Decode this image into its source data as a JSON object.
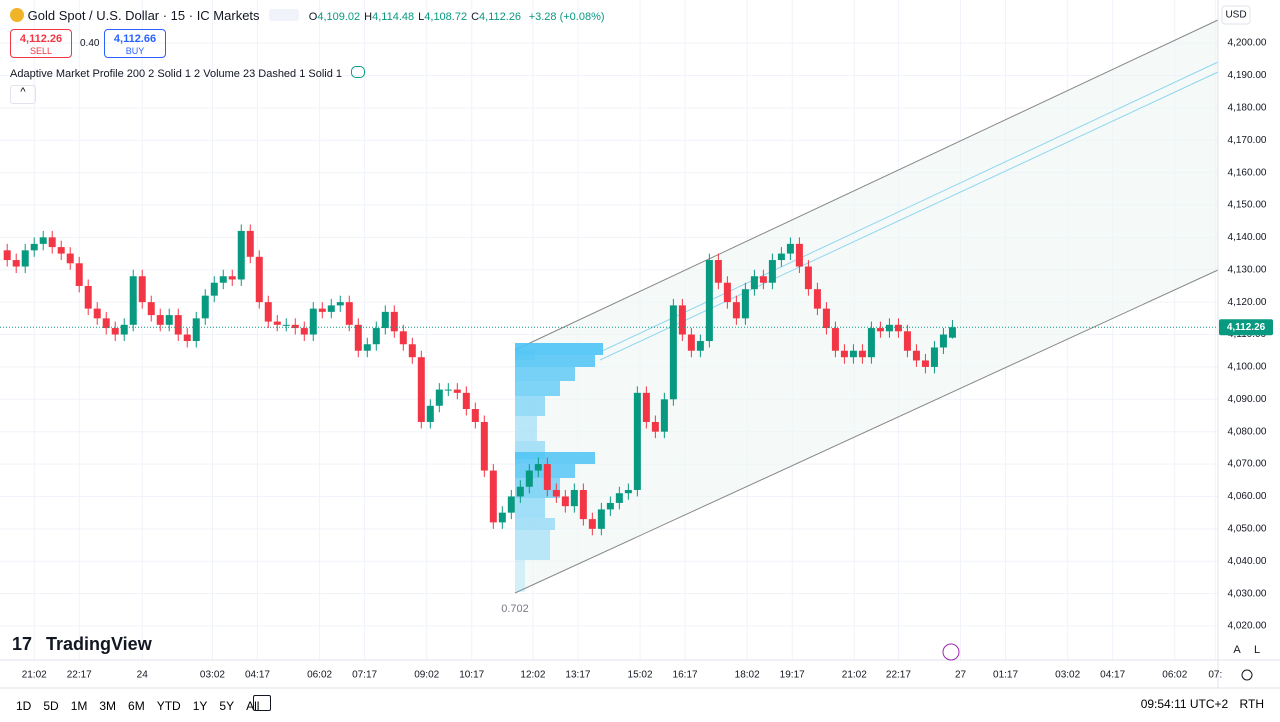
{
  "header": {
    "symbol": "Gold Spot / U.S. Dollar · 15 · IC Markets",
    "ohlc": [
      {
        "label": "O",
        "value": "4,109.02"
      },
      {
        "label": "H",
        "value": "4,114.48"
      },
      {
        "label": "L",
        "value": "4,108.72"
      },
      {
        "label": "C",
        "value": "4,112.26"
      }
    ],
    "change": "+3.28 (+0.08%)",
    "sell_price": "4,112.26",
    "sell_label": "SELL",
    "spread": "0.40",
    "buy_price": "4,112.66",
    "buy_label": "BUY",
    "indicator": "Adaptive Market Profile 200 2 Solid 1 2 Volume 23 Dashed 1 Solid 1",
    "currency": "USD",
    "channel_label": "0.702",
    "brand": "TradingView"
  },
  "chart_data": {
    "type": "candlestick",
    "up_color": "#089981",
    "down_color": "#f23645",
    "grid": true,
    "open": [
      4136,
      4133,
      4131,
      4136,
      4138,
      4140,
      4137,
      4135,
      4132,
      4125,
      4118,
      4115,
      4112,
      4110,
      4113,
      4128,
      4120,
      4116,
      4113,
      4116,
      4110,
      4108,
      4115,
      4122,
      4126,
      4128,
      4127,
      4142,
      4134,
      4120,
      4114,
      4113,
      4113,
      4112,
      4110,
      4118,
      4117,
      4119,
      4120,
      4113,
      4105,
      4107,
      4112,
      4117,
      4111,
      4107,
      4103,
      4083,
      4088,
      4093,
      4093,
      4092,
      4087,
      4083,
      4068,
      4052,
      4055,
      4060,
      4063,
      4068,
      4070,
      4062,
      4060,
      4057,
      4062,
      4053,
      4050,
      4056,
      4058,
      4061,
      4062,
      4092,
      4083,
      4080,
      4090,
      4119,
      4110,
      4105,
      4108,
      4133,
      4126,
      4120,
      4115,
      4124,
      4128,
      4126,
      4133,
      4135,
      4138,
      4131,
      4124,
      4118,
      4112,
      4105,
      4103,
      4105,
      4103,
      4112,
      4111,
      4113,
      4111,
      4105,
      4102,
      4100,
      4106,
      4109.02
    ],
    "high": [
      4138,
      4135,
      4138,
      4140,
      4142,
      4142,
      4139,
      4137,
      4134,
      4127,
      4120,
      4117,
      4114,
      4115,
      4130,
      4130,
      4122,
      4118,
      4118,
      4118,
      4112,
      4117,
      4124,
      4128,
      4130,
      4130,
      4144,
      4144,
      4136,
      4122,
      4116,
      4115,
      4115,
      4114,
      4120,
      4120,
      4121,
      4122,
      4122,
      4115,
      4109,
      4114,
      4119,
      4119,
      4113,
      4109,
      4105,
      4090,
      4095,
      4095,
      4095,
      4094,
      4089,
      4085,
      4070,
      4057,
      4062,
      4065,
      4070,
      4072,
      4072,
      4064,
      4062,
      4064,
      4064,
      4055,
      4058,
      4060,
      4063,
      4064,
      4094,
      4094,
      4085,
      4092,
      4121,
      4121,
      4112,
      4110,
      4135,
      4135,
      4128,
      4122,
      4126,
      4130,
      4130,
      4135,
      4137,
      4140,
      4140,
      4133,
      4126,
      4120,
      4114,
      4107,
      4107,
      4107,
      4114,
      4114,
      4115,
      4115,
      4113,
      4107,
      4104,
      4108,
      4112,
      4114.48
    ],
    "low": [
      4131,
      4129,
      4129,
      4134,
      4136,
      4135,
      4133,
      4130,
      4123,
      4116,
      4113,
      4110,
      4108,
      4108,
      4111,
      4118,
      4114,
      4111,
      4111,
      4108,
      4106,
      4106,
      4113,
      4120,
      4124,
      4125,
      4125,
      4132,
      4118,
      4112,
      4111,
      4111,
      4110,
      4108,
      4108,
      4115,
      4115,
      4117,
      4111,
      4103,
      4103,
      4105,
      4110,
      4109,
      4105,
      4101,
      4081,
      4081,
      4086,
      4091,
      4090,
      4085,
      4081,
      4066,
      4050,
      4050,
      4053,
      4058,
      4061,
      4066,
      4060,
      4058,
      4055,
      4055,
      4051,
      4048,
      4048,
      4054,
      4056,
      4059,
      4060,
      4081,
      4078,
      4078,
      4088,
      4108,
      4103,
      4103,
      4106,
      4124,
      4118,
      4113,
      4113,
      4122,
      4124,
      4124,
      4131,
      4133,
      4129,
      4122,
      4116,
      4110,
      4103,
      4101,
      4101,
      4101,
      4101,
      4109,
      4109,
      4109,
      4103,
      4100,
      4098,
      4098,
      4104,
      4108.72
    ],
    "close": [
      4133,
      4131,
      4136,
      4138,
      4140,
      4137,
      4135,
      4132,
      4125,
      4118,
      4115,
      4112,
      4110,
      4113,
      4128,
      4120,
      4116,
      4113,
      4116,
      4110,
      4108,
      4115,
      4122,
      4126,
      4128,
      4127,
      4142,
      4134,
      4120,
      4114,
      4113,
      4113,
      4112,
      4110,
      4118,
      4117,
      4119,
      4120,
      4113,
      4105,
      4107,
      4112,
      4117,
      4111,
      4107,
      4103,
      4083,
      4088,
      4093,
      4093,
      4092,
      4087,
      4083,
      4068,
      4052,
      4055,
      4060,
      4063,
      4068,
      4070,
      4062,
      4060,
      4057,
      4062,
      4053,
      4050,
      4056,
      4058,
      4061,
      4062,
      4092,
      4083,
      4080,
      4090,
      4119,
      4110,
      4105,
      4108,
      4133,
      4126,
      4120,
      4115,
      4124,
      4128,
      4126,
      4133,
      4135,
      4138,
      4131,
      4124,
      4118,
      4112,
      4105,
      4103,
      4105,
      4103,
      4112,
      4111,
      4113,
      4111,
      4105,
      4102,
      4100,
      4106,
      4110,
      4112.26
    ],
    "xlim": [
      -0.8,
      134.5
    ],
    "xticks": [
      {
        "value": 3,
        "label": "21:02"
      },
      {
        "value": 8,
        "label": "22:17"
      },
      {
        "value": 15,
        "label": "24"
      },
      {
        "value": 22.8,
        "label": "03:02"
      },
      {
        "value": 27.8,
        "label": "04:17"
      },
      {
        "value": 34.7,
        "label": "06:02"
      },
      {
        "value": 39.7,
        "label": "07:17"
      },
      {
        "value": 46.6,
        "label": "09:02"
      },
      {
        "value": 51.6,
        "label": "10:17"
      },
      {
        "value": 58.4,
        "label": "12:02"
      },
      {
        "value": 63.4,
        "label": "13:17"
      },
      {
        "value": 70.3,
        "label": "15:02"
      },
      {
        "value": 75.3,
        "label": "16:17"
      },
      {
        "value": 82.2,
        "label": "18:02"
      },
      {
        "value": 87.2,
        "label": "19:17"
      },
      {
        "value": 94.1,
        "label": "21:02"
      },
      {
        "value": 99,
        "label": "22:17"
      },
      {
        "value": 105.9,
        "label": "27"
      },
      {
        "value": 110.9,
        "label": "01:17"
      },
      {
        "value": 117.8,
        "label": "03:02"
      },
      {
        "value": 122.8,
        "label": "04:17"
      },
      {
        "value": 129.7,
        "label": "06:02"
      },
      {
        "value": 134.2,
        "label": "07:"
      }
    ],
    "ylim": [
      4009.5,
      4213.3
    ],
    "yticks": [
      {
        "value": 4020,
        "label": "4,020.00"
      },
      {
        "value": 4030,
        "label": "4,030.00"
      },
      {
        "value": 4040,
        "label": "4,040.00"
      },
      {
        "value": 4050,
        "label": "4,050.00"
      },
      {
        "value": 4060,
        "label": "4,060.00"
      },
      {
        "value": 4070,
        "label": "4,070.00"
      },
      {
        "value": 4080,
        "label": "4,080.00"
      },
      {
        "value": 4090,
        "label": "4,090.00"
      },
      {
        "value": 4100,
        "label": "4,100.00"
      },
      {
        "value": 4110,
        "label": "4,110.00"
      },
      {
        "value": 4120,
        "label": "4,120.00"
      },
      {
        "value": 4130,
        "label": "4,130.00"
      },
      {
        "value": 4140,
        "label": "4,140.00"
      },
      {
        "value": 4150,
        "label": "4,150.00"
      },
      {
        "value": 4160,
        "label": "4,160.00"
      },
      {
        "value": 4170,
        "label": "4,170.00"
      },
      {
        "value": 4180,
        "label": "4,180.00"
      },
      {
        "value": 4190,
        "label": "4,190.00"
      },
      {
        "value": 4200,
        "label": "4,200.00"
      }
    ],
    "last_price": {
      "value": 4112.26,
      "label": "4,112.26"
    }
  },
  "toolbar": {
    "ranges": [
      "1D",
      "5D",
      "1M",
      "3M",
      "6M",
      "YTD",
      "1Y",
      "5Y",
      "All"
    ],
    "clock": "09:54:11 UTC+2",
    "session": "RTH",
    "auto": "A",
    "log": "L"
  }
}
